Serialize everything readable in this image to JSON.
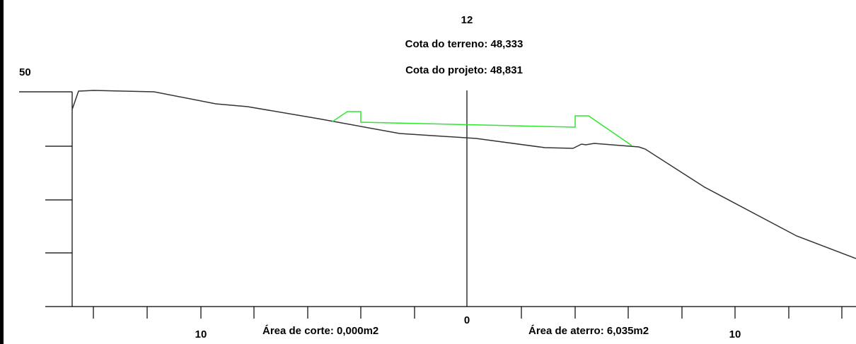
{
  "section": {
    "station": "12",
    "terrain_elevation_label": "Cota do terreno: 48,333",
    "project_elevation_label": "Cota do projeto: 48,831",
    "elevation_label": "50",
    "cut_area_label": "Área de corte: 0,000m2",
    "fill_area_label": "Área de aterro: 6,035m2",
    "axis_labels": {
      "left": "10",
      "center": "0",
      "right": "10"
    }
  },
  "colors": {
    "background": "#ffffff",
    "frame": "#000000",
    "axes": "#000000",
    "terrain": "#333333",
    "project": "#2ee82e",
    "text": "#000000"
  }
}
